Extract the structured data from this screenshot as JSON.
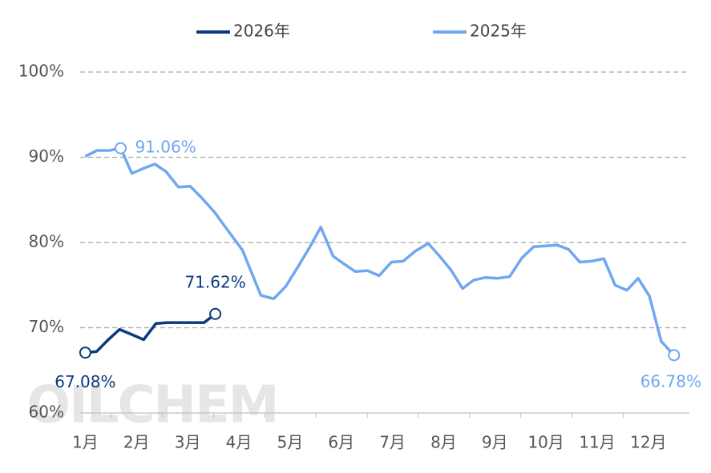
{
  "chart_data": {
    "type": "line",
    "watermark": "OILCHEM",
    "xlim": [
      0.9,
      12.8
    ],
    "xticks": [
      {
        "value": 1,
        "label": "1月"
      },
      {
        "value": 2,
        "label": "2月"
      },
      {
        "value": 3,
        "label": "3月"
      },
      {
        "value": 4,
        "label": "4月"
      },
      {
        "value": 5,
        "label": "5月"
      },
      {
        "value": 6,
        "label": "6月"
      },
      {
        "value": 7,
        "label": "7月"
      },
      {
        "value": 8,
        "label": "8月"
      },
      {
        "value": 9,
        "label": "9月"
      },
      {
        "value": 10,
        "label": "10月"
      },
      {
        "value": 11,
        "label": "11月"
      },
      {
        "value": 12,
        "label": "12月"
      }
    ],
    "ylim": [
      60,
      100
    ],
    "yticks": [
      {
        "value": 60,
        "label": "60%"
      },
      {
        "value": 70,
        "label": "70%"
      },
      {
        "value": 80,
        "label": "80%"
      },
      {
        "value": 90,
        "label": "90%"
      },
      {
        "value": 100,
        "label": "100%"
      }
    ],
    "grid": true,
    "legend": "top",
    "series": [
      {
        "name": "2026年",
        "color": "#0b3a7e",
        "x": [
          1.0,
          1.22,
          1.45,
          1.67,
          1.91,
          2.14,
          2.38,
          2.61,
          2.85,
          3.08,
          3.32,
          3.54
        ],
        "values": [
          67.08,
          67.2,
          68.6,
          69.8,
          69.2,
          68.6,
          70.5,
          70.6,
          70.6,
          70.6,
          70.6,
          71.62
        ],
        "value_labels": [
          "67.08%",
          null,
          null,
          null,
          null,
          null,
          null,
          null,
          null,
          null,
          null,
          "71.62%"
        ]
      },
      {
        "name": "2025年",
        "color": "#6fa8f0",
        "x": [
          1.0,
          1.23,
          1.47,
          1.69,
          1.91,
          2.14,
          2.36,
          2.58,
          2.82,
          3.05,
          3.28,
          3.52,
          3.75,
          4.07,
          4.43,
          4.68,
          4.91,
          5.15,
          5.38,
          5.6,
          5.84,
          6.05,
          6.27,
          6.51,
          6.74,
          6.98,
          7.21,
          7.45,
          7.7,
          7.92,
          8.14,
          8.37,
          8.59,
          8.82,
          9.06,
          9.29,
          9.53,
          9.76,
          10.0,
          10.22,
          10.44,
          10.66,
          10.89,
          11.13,
          11.35,
          11.58,
          11.8,
          12.02,
          12.25,
          12.5
        ],
        "values": [
          90.1,
          90.8,
          90.8,
          91.06,
          88.1,
          88.7,
          89.2,
          88.3,
          86.5,
          86.6,
          85.2,
          83.6,
          81.7,
          79.1,
          73.8,
          73.4,
          74.8,
          77.1,
          79.4,
          81.8,
          78.4,
          77.5,
          76.6,
          76.7,
          76.1,
          77.7,
          77.8,
          79.0,
          79.9,
          78.4,
          76.8,
          74.6,
          75.6,
          75.9,
          75.8,
          76.0,
          78.2,
          79.5,
          79.6,
          79.7,
          79.2,
          77.7,
          77.8,
          78.1,
          75.0,
          74.4,
          75.8,
          73.7,
          68.4,
          66.78
        ],
        "value_labels": [
          null,
          null,
          null,
          "91.06%",
          null,
          null,
          null,
          null,
          null,
          null,
          null,
          null,
          null,
          null,
          null,
          null,
          null,
          null,
          null,
          null,
          null,
          null,
          null,
          null,
          null,
          null,
          null,
          null,
          null,
          null,
          null,
          null,
          null,
          null,
          null,
          null,
          null,
          null,
          null,
          null,
          null,
          null,
          null,
          null,
          null,
          null,
          null,
          null,
          null,
          "66.78%"
        ]
      }
    ]
  }
}
